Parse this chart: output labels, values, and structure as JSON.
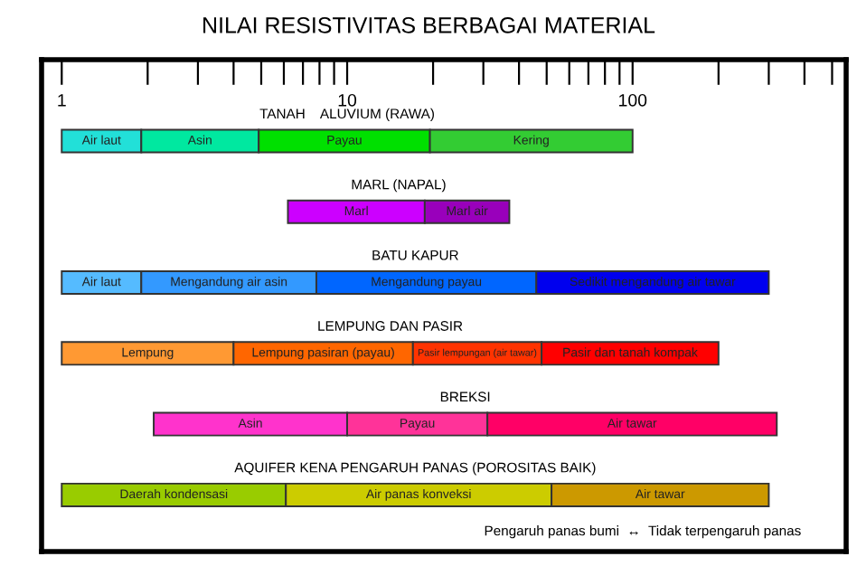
{
  "chart_data": {
    "type": "bar",
    "orientation": "horizontal",
    "title": "NILAI RESISTIVITAS BERBAGAI MATERIAL",
    "categories": [
      "TANAH    ALUVIUM (RAWA)",
      "MARL (NAPAL)",
      "BATU KAPUR",
      "LEMPUNG DAN PASIR",
      "BREKSI",
      "AQUIFER KENA PENGARUH PANAS (POROSITAS BAIK)"
    ],
    "log": "x",
    "xlim": [
      0.85,
      560
    ],
    "xticks": [
      1,
      {
        "value": 2,
        "label": null
      },
      {
        "value": 3,
        "label": null
      },
      {
        "value": 4,
        "label": null
      },
      {
        "value": 5,
        "label": null
      },
      {
        "value": 6,
        "label": null
      },
      {
        "value": 7,
        "label": null
      },
      {
        "value": 8,
        "label": null
      },
      {
        "value": 9,
        "label": null
      },
      10,
      {
        "value": 20,
        "label": null
      },
      {
        "value": 30,
        "label": null
      },
      {
        "value": 40,
        "label": null
      },
      {
        "value": 50,
        "label": null
      },
      {
        "value": 60,
        "label": null
      },
      {
        "value": 70,
        "label": null
      },
      {
        "value": 80,
        "label": null
      },
      {
        "value": 90,
        "label": null
      },
      100,
      {
        "value": 200,
        "label": null
      },
      {
        "value": 300,
        "label": null
      },
      {
        "value": 400,
        "label": null
      },
      {
        "value": 500,
        "label": null
      }
    ],
    "grid": false,
    "series": [
      {
        "base": [
          1,
          6.2,
          1,
          1,
          2.1,
          1
        ],
        "values": [
          0.9,
          12.5,
          0.9,
          3,
          7.9,
          5.1
        ],
        "colors": [
          "#22e0d8",
          "#cc00ff",
          "#55bbff",
          "#ff9933",
          "#ff33cc",
          "#99cc00"
        ],
        "value_labels": [
          "Air laut",
          "Marl",
          "Air laut",
          "Lempung",
          "Asin",
          "Daerah kondensasi"
        ]
      },
      {
        "base": [
          1.9,
          18.7,
          1.9,
          4,
          10,
          6.1
        ],
        "values": [
          3,
          18.3,
          5.9,
          13,
          21,
          45.9
        ],
        "colors": [
          "#00e8a0",
          "#9900bb",
          "#3399ff",
          "#ff6600",
          "#ff3399",
          "#cccc00"
        ],
        "value_labels": [
          "Asin",
          "Marl air",
          "Mengandung air asin",
          "Lempung pasiran (payau)",
          "Payau",
          "Air panas konveksi"
        ]
      },
      {
        "base": [
          4.9,
          null,
          7.8,
          17,
          31,
          52
        ],
        "values": [
          14.6,
          null,
          38.2,
          31,
          289,
          248
        ],
        "colors": [
          "#00e000",
          null,
          "#0066ff",
          "#ff3300",
          "#ff0066",
          "#cc9900"
        ],
        "value_labels": [
          "Payau",
          null,
          "Mengandung payau",
          "Pasir lempungan (air tawar)",
          "Air tawar",
          "Air tawar"
        ]
      },
      {
        "base": [
          19.5,
          null,
          46,
          48,
          null,
          null
        ],
        "values": [
          80.5,
          null,
          254,
          152,
          null,
          null
        ],
        "colors": [
          "#33cc33",
          null,
          "#0000ee",
          "#ff0000",
          null,
          null
        ],
        "value_labels": [
          "Kering",
          null,
          "Sedikit mengandung air tawar",
          "Pasir dan tanah kompak",
          null,
          null
        ]
      }
    ],
    "annotations": [
      "Pengaruh panas bumi  ↔  Tidak terpengaruh panas"
    ]
  }
}
